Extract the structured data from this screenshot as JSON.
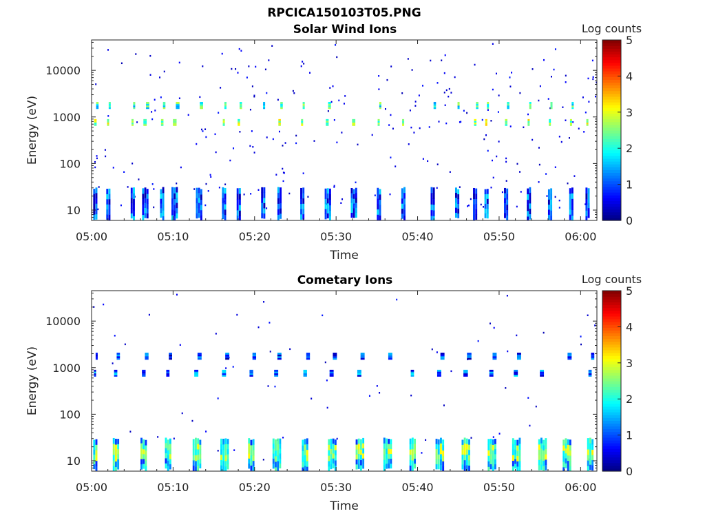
{
  "figure": {
    "title": "RPCICA150103T05.PNG"
  },
  "chart_data": [
    {
      "type": "heatmap",
      "title": "Solar Wind Ions",
      "xlabel": "Time",
      "ylabel": "Energy (eV)",
      "x_ticks": [
        "05:00",
        "05:10",
        "05:20",
        "05:30",
        "05:40",
        "05:50",
        "06:00"
      ],
      "x_range_minutes": [
        0,
        62
      ],
      "y_scale": "log",
      "y_ticks": [
        "10",
        "100",
        "1000",
        "10000"
      ],
      "y_range_eV": [
        6,
        45000
      ],
      "colorbar_label": "Log counts",
      "colorbar_ticks": [
        "0",
        "1",
        "2",
        "3",
        "4",
        "5"
      ],
      "colorbar_range": [
        0,
        5
      ],
      "bursts": [
        {
          "t": 0.2,
          "w": 0.6
        },
        {
          "t": 1.8,
          "w": 0.5
        },
        {
          "t": 4.8,
          "w": 0.5
        },
        {
          "t": 6.2,
          "w": 0.8
        },
        {
          "t": 8.4,
          "w": 0.6
        },
        {
          "t": 9.8,
          "w": 0.9
        },
        {
          "t": 12.8,
          "w": 0.8
        },
        {
          "t": 16.0,
          "w": 0.5
        },
        {
          "t": 17.8,
          "w": 0.6
        },
        {
          "t": 20.8,
          "w": 0.4
        },
        {
          "t": 22.8,
          "w": 0.6
        },
        {
          "t": 25.6,
          "w": 0.5
        },
        {
          "t": 28.6,
          "w": 0.7
        },
        {
          "t": 31.8,
          "w": 0.8
        },
        {
          "t": 35.0,
          "w": 0.5
        },
        {
          "t": 38.0,
          "w": 0.5
        },
        {
          "t": 41.6,
          "w": 0.6
        },
        {
          "t": 44.6,
          "w": 0.5
        },
        {
          "t": 46.8,
          "w": 0.6
        },
        {
          "t": 48.2,
          "w": 0.5
        },
        {
          "t": 50.6,
          "w": 0.6
        },
        {
          "t": 53.4,
          "w": 0.5
        },
        {
          "t": 56.0,
          "w": 0.5
        },
        {
          "t": 58.6,
          "w": 0.5
        },
        {
          "t": 60.6,
          "w": 0.5
        }
      ],
      "bands_eV": [
        [
          650,
          900,
          2.6
        ],
        [
          1500,
          2100,
          2.1
        ]
      ],
      "low_band_eV": [
        7,
        28,
        1.0
      ]
    },
    {
      "type": "heatmap",
      "title": "Cometary Ions",
      "xlabel": "Time",
      "ylabel": "Energy (eV)",
      "x_ticks": [
        "05:00",
        "05:10",
        "05:20",
        "05:30",
        "05:40",
        "05:50",
        "06:00"
      ],
      "x_range_minutes": [
        0,
        62
      ],
      "y_scale": "log",
      "y_ticks": [
        "10",
        "100",
        "1000",
        "10000"
      ],
      "y_range_eV": [
        6,
        45000
      ],
      "colorbar_label": "Log counts",
      "colorbar_ticks": [
        "0",
        "1",
        "2",
        "3",
        "4",
        "5"
      ],
      "colorbar_range": [
        0,
        5
      ],
      "bursts": [
        {
          "t": 0.2,
          "w": 0.5
        },
        {
          "t": 2.6,
          "w": 0.8
        },
        {
          "t": 6.0,
          "w": 0.9
        },
        {
          "t": 9.0,
          "w": 0.8
        },
        {
          "t": 12.4,
          "w": 1.0
        },
        {
          "t": 15.8,
          "w": 1.0
        },
        {
          "t": 19.2,
          "w": 0.9
        },
        {
          "t": 22.2,
          "w": 1.0
        },
        {
          "t": 25.8,
          "w": 0.9
        },
        {
          "t": 29.0,
          "w": 1.0
        },
        {
          "t": 32.4,
          "w": 1.0
        },
        {
          "t": 35.8,
          "w": 1.0
        },
        {
          "t": 39.0,
          "w": 0.8
        },
        {
          "t": 42.2,
          "w": 1.0
        },
        {
          "t": 45.4,
          "w": 1.1
        },
        {
          "t": 48.6,
          "w": 1.0
        },
        {
          "t": 51.6,
          "w": 1.0
        },
        {
          "t": 54.8,
          "w": 1.0
        },
        {
          "t": 57.8,
          "w": 1.0
        },
        {
          "t": 60.8,
          "w": 0.8
        }
      ],
      "bands_eV": [
        [
          650,
          900,
          1.1
        ],
        [
          1500,
          2100,
          0.9
        ]
      ],
      "low_band_eV": [
        7,
        28,
        1.6
      ]
    }
  ]
}
